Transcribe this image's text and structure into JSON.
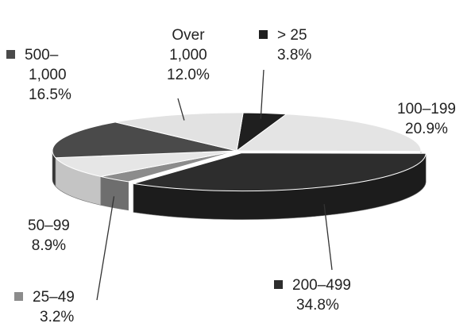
{
  "chart_data": {
    "type": "pie",
    "style": "3d-exploded",
    "title": "",
    "slices": [
      {
        "name": "> 25",
        "lines": [
          "> 25"
        ],
        "value": 3.8,
        "value_label": "3.8%",
        "color": "#1f1f1f",
        "side": "#0f0f0f"
      },
      {
        "name": "100–199",
        "lines": [
          "100–199"
        ],
        "value": 20.9,
        "value_label": "20.9%",
        "color": "#e4e4e4",
        "side": "#bdbdbd"
      },
      {
        "name": "200–499",
        "lines": [
          "200–499"
        ],
        "value": 34.8,
        "value_label": "34.8%",
        "color": "#2d2d2d",
        "side": "#1c1c1c"
      },
      {
        "name": "25–49",
        "lines": [
          "25–49"
        ],
        "value": 3.2,
        "value_label": "3.2%",
        "color": "#8c8c8c",
        "side": "#6e6e6e"
      },
      {
        "name": "50–99",
        "lines": [
          "50–99"
        ],
        "value": 8.9,
        "value_label": "8.9%",
        "color": "#e6e6e6",
        "side": "#c4c4c4"
      },
      {
        "name": "500–1,000",
        "lines": [
          "500–",
          "1,000"
        ],
        "value": 16.5,
        "value_label": "16.5%",
        "color": "#4a4a4a",
        "side": "#333333"
      },
      {
        "name": "Over 1,000",
        "lines": [
          "Over",
          "1,000"
        ],
        "value": 12.0,
        "value_label": "12.0%",
        "color": "#e2e2e2",
        "side": "#c2c2c2"
      }
    ]
  }
}
